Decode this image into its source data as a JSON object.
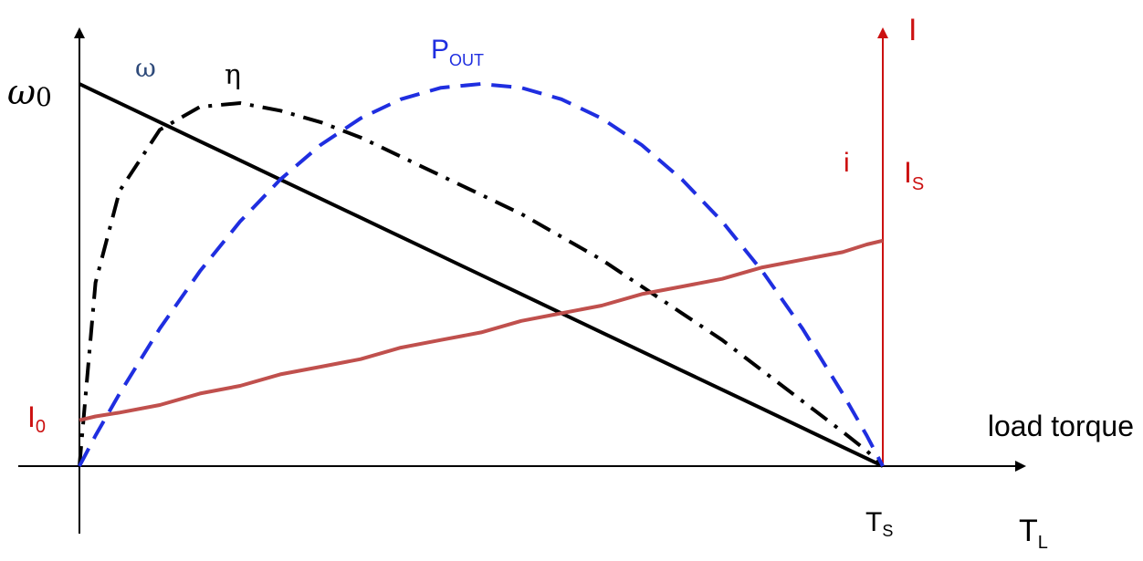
{
  "colors": {
    "axis": "#000000",
    "speed": "#000000",
    "efficiency": "#000000",
    "power": "#1f2ee0",
    "current_line": "#c0504d",
    "current_axis": "#cc1111",
    "omega_symbol": "#2e4a7a"
  },
  "chart_data": {
    "type": "line",
    "title": "",
    "description_axes": {
      "x_label": "load torque",
      "x_symbol_main": "T",
      "x_symbol_sub": "L",
      "x_tick_main": "T",
      "x_tick_sub": "S",
      "x_range": [
        0,
        1
      ],
      "left_y_tick_main": "ω",
      "left_y_tick_sub": "0",
      "right_y_label": "I",
      "right_y_tick_main": "I",
      "right_y_tick_sub": "S",
      "left_y_low_main": "I",
      "left_y_low_sub": "0"
    },
    "x": [
      0,
      0.02,
      0.05,
      0.1,
      0.15,
      0.2,
      0.25,
      0.3,
      0.35,
      0.4,
      0.45,
      0.5,
      0.55,
      0.6,
      0.65,
      0.7,
      0.75,
      0.8,
      0.85,
      0.9,
      0.95,
      0.98,
      1.0
    ],
    "series": [
      {
        "name": "ω",
        "label_main": "ω",
        "style": "solid",
        "values": [
          1.0,
          0.98,
          0.95,
          0.9,
          0.85,
          0.8,
          0.75,
          0.7,
          0.65,
          0.6,
          0.55,
          0.5,
          0.45,
          0.4,
          0.35,
          0.3,
          0.25,
          0.2,
          0.15,
          0.1,
          0.05,
          0.02,
          0.0
        ]
      },
      {
        "name": "η",
        "label_main": "η",
        "style": "dash-dot",
        "values": [
          0.0,
          0.48,
          0.72,
          0.88,
          0.94,
          0.95,
          0.93,
          0.9,
          0.86,
          0.81,
          0.76,
          0.71,
          0.66,
          0.6,
          0.54,
          0.47,
          0.4,
          0.33,
          0.25,
          0.17,
          0.09,
          0.04,
          0.0
        ]
      },
      {
        "name": "P_OUT",
        "label_main": "P",
        "label_sub": "OUT",
        "style": "dashed",
        "values": [
          0.0,
          0.08,
          0.19,
          0.36,
          0.51,
          0.64,
          0.75,
          0.84,
          0.91,
          0.96,
          0.99,
          1.0,
          0.99,
          0.96,
          0.91,
          0.84,
          0.75,
          0.64,
          0.51,
          0.36,
          0.19,
          0.08,
          0.0
        ]
      },
      {
        "name": "i",
        "label_main": "i",
        "style": "solid",
        "values": [
          0.12,
          0.13,
          0.14,
          0.16,
          0.19,
          0.21,
          0.24,
          0.26,
          0.28,
          0.31,
          0.33,
          0.35,
          0.38,
          0.4,
          0.42,
          0.45,
          0.47,
          0.49,
          0.52,
          0.54,
          0.56,
          0.58,
          0.59
        ]
      }
    ],
    "current_y_range": [
      0,
      1
    ],
    "normalized_y_range": [
      0,
      1
    ]
  }
}
